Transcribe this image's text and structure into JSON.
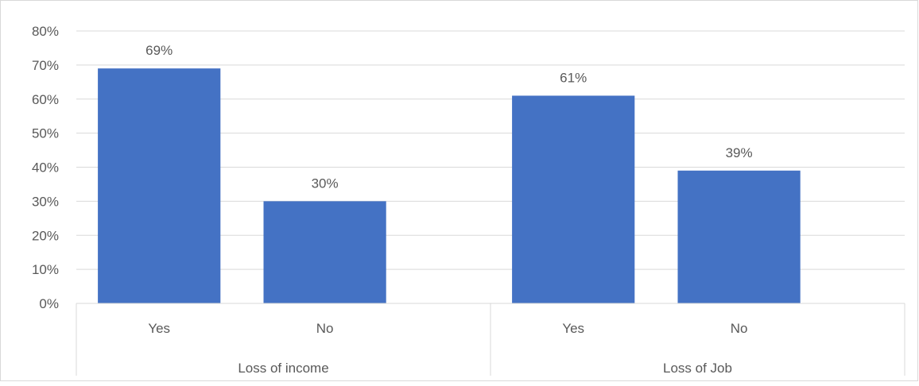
{
  "chart_data": {
    "type": "bar",
    "title": "",
    "xlabel": "",
    "ylabel": "",
    "ylim": [
      0,
      0.8
    ],
    "y_ticks": [
      "0%",
      "10%",
      "20%",
      "30%",
      "40%",
      "50%",
      "60%",
      "70%",
      "80%"
    ],
    "grid": true,
    "groups": [
      {
        "name": "Loss of income",
        "categories": [
          "Yes",
          "No"
        ],
        "values": [
          0.69,
          0.3
        ],
        "labels": [
          "69%",
          "30%"
        ]
      },
      {
        "name": "Loss of Job",
        "categories": [
          "Yes",
          "No"
        ],
        "values": [
          0.61,
          0.39
        ],
        "labels": [
          "61%",
          "39%"
        ]
      }
    ],
    "colors": {
      "bar": "#4472c4",
      "grid": "#d9d9d9",
      "text": "#595959"
    }
  }
}
